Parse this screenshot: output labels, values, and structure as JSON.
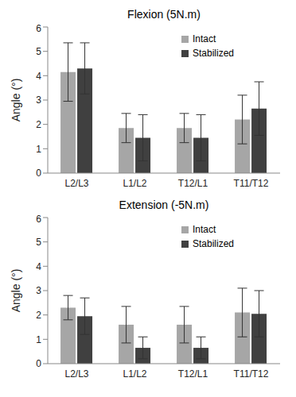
{
  "chart_data": [
    {
      "type": "bar",
      "title": "Flexion (5N.m)",
      "y_label": "Angle (°)",
      "categories": [
        "L2/L3",
        "L1/L2",
        "T12/L1",
        "T11/T12"
      ],
      "series": [
        {
          "name": "Intact",
          "color": "#a6a6a6",
          "values": [
            4.15,
            1.85,
            1.85,
            2.2
          ],
          "errors": [
            1.2,
            0.6,
            0.6,
            1.0
          ]
        },
        {
          "name": "Stabilized",
          "color": "#404040",
          "values": [
            4.3,
            1.45,
            1.45,
            2.65
          ],
          "errors": [
            1.05,
            0.95,
            0.95,
            1.1
          ]
        }
      ],
      "ylim": [
        0,
        6
      ],
      "yticks": [
        0,
        1,
        2,
        3,
        4,
        5,
        6
      ],
      "grid": false,
      "legend": "upper right"
    },
    {
      "type": "bar",
      "title": "Extension (-5N.m)",
      "y_label": "Angle (°)",
      "categories": [
        "L2/L3",
        "L1/L2",
        "T12/L1",
        "T11/T12"
      ],
      "series": [
        {
          "name": "Intact",
          "color": "#a6a6a6",
          "values": [
            2.3,
            1.6,
            1.6,
            2.1
          ],
          "errors": [
            0.5,
            0.75,
            0.75,
            1.0
          ]
        },
        {
          "name": "Stabilized",
          "color": "#404040",
          "values": [
            1.95,
            0.65,
            0.65,
            2.05
          ],
          "errors": [
            0.75,
            0.45,
            0.45,
            0.95
          ]
        }
      ],
      "ylim": [
        0,
        6
      ],
      "yticks": [
        0,
        1,
        2,
        3,
        4,
        5,
        6
      ],
      "grid": false,
      "legend": "upper right"
    }
  ]
}
